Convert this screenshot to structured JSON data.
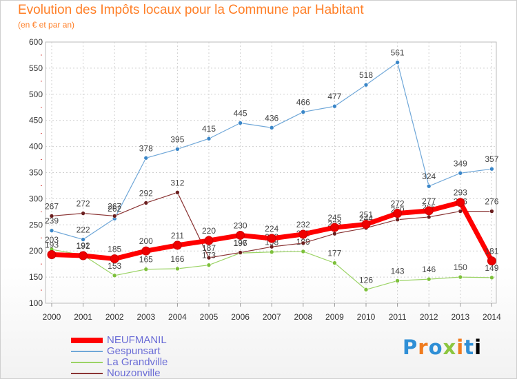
{
  "chart_data": {
    "type": "line",
    "title": "Evolution des Impôts locaux pour la Commune par Habitant",
    "subtitle": "(en € et par an)",
    "xlabel": "",
    "ylabel": "",
    "ylim": [
      100,
      600
    ],
    "yticks": [
      "100",
      "150",
      "200",
      "250",
      "300",
      "350",
      "400",
      "450",
      "500",
      "550",
      "600"
    ],
    "x": [
      "2000",
      "2001",
      "2002",
      "2003",
      "2004",
      "2005",
      "2006",
      "2007",
      "2008",
      "2009",
      "2010",
      "2011",
      "2012",
      "2013",
      "2014"
    ],
    "grid": true,
    "legend_position": "bottom-left",
    "series": [
      {
        "name": "Gespunsart",
        "color": "#6fa7d8",
        "marker": "#3a86c8",
        "width": 1.2,
        "values": [
          239,
          222,
          262,
          378,
          395,
          415,
          445,
          436,
          466,
          477,
          518,
          561,
          324,
          349,
          357
        ],
        "labels": [
          "239",
          "222",
          "262",
          "378",
          "395",
          "415",
          "445",
          "436",
          "466",
          "477",
          "518",
          "561",
          "324",
          "349",
          "357"
        ]
      },
      {
        "name": "La Grandville",
        "color": "#9bd365",
        "marker": "#7dc03b",
        "width": 1.2,
        "values": [
          203,
          192,
          153,
          165,
          166,
          173,
          196,
          198,
          199,
          177,
          126,
          143,
          146,
          150,
          149
        ],
        "labels": [
          "203",
          "192",
          "153",
          "165",
          "166",
          "173",
          "196",
          "198",
          "199",
          "177",
          "126",
          "143",
          "146",
          "150",
          "149"
        ]
      },
      {
        "name": "Nouzonville",
        "color": "#8b3535",
        "marker": "#6b1f1f",
        "width": 1.2,
        "values": [
          267,
          272,
          267,
          292,
          312,
          187,
          197,
          208,
          215,
          233,
          244,
          260,
          265,
          276,
          276
        ],
        "labels": [
          "267",
          "272",
          "267",
          "292",
          "312",
          "187",
          "197",
          "208",
          "215",
          "233",
          "244",
          "260",
          "265",
          "276",
          "276"
        ]
      },
      {
        "name": "NEUFMANIL",
        "color": "#ff0000",
        "marker": "#ee0000",
        "width": 7,
        "values": [
          193,
          191,
          185,
          200,
          211,
          220,
          230,
          224,
          232,
          245,
          251,
          272,
          277,
          293,
          181
        ],
        "labels": [
          "193",
          "191",
          "185",
          "200",
          "211",
          "220",
          "230",
          "224",
          "232",
          "245",
          "251",
          "272",
          "277",
          "293",
          "181"
        ]
      }
    ]
  },
  "legend": [
    {
      "label": "NEUFMANIL",
      "color": "#ff0000",
      "thickness": 8
    },
    {
      "label": "Gespunsart",
      "color": "#6fa7d8",
      "thickness": 2
    },
    {
      "label": "La Grandville",
      "color": "#9bd365",
      "thickness": 2
    },
    {
      "label": "Nouzonville",
      "color": "#8b3535",
      "thickness": 2
    }
  ],
  "logo": {
    "letters": [
      "P",
      "r",
      "o",
      "x",
      "i",
      "t",
      "i"
    ],
    "text": "Proxiti"
  }
}
